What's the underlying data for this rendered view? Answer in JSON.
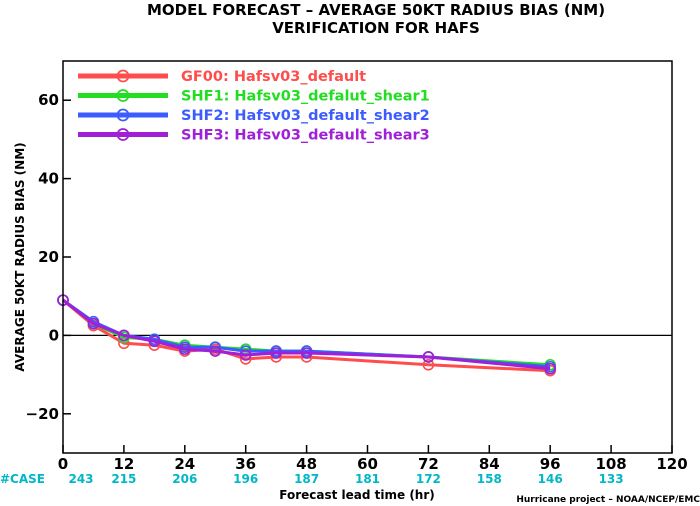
{
  "colors": {
    "axis": "#000000",
    "zero_line": "#000000",
    "case_label": "#00b7c7",
    "case_values": "#00b7c7"
  },
  "chart_data": {
    "type": "line",
    "title": "MODEL FORECAST – AVERAGE 50KT RADIUS BIAS (NM)",
    "subtitle": "VERIFICATION FOR HAFS",
    "xlabel": "Forecast lead time (hr)",
    "ylabel": "AVERAGE 50KT RADIUS BIAS (NM)",
    "credit": "Hurricane project – NOAA/NCEP/EMC",
    "xlim": [
      0,
      120
    ],
    "ylim": [
      -30,
      70
    ],
    "x_ticks": [
      0,
      12,
      24,
      36,
      48,
      60,
      72,
      84,
      96,
      108,
      120
    ],
    "y_ticks": [
      -20,
      0,
      20,
      40,
      60
    ],
    "grid": false,
    "zero_line": true,
    "legend_position": "top-left",
    "case_label": "#CASE",
    "case_counts": [
      {
        "x": 0,
        "n": "243"
      },
      {
        "x": 12,
        "n": "215"
      },
      {
        "x": 24,
        "n": "206"
      },
      {
        "x": 36,
        "n": "196"
      },
      {
        "x": 48,
        "n": "187"
      },
      {
        "x": 60,
        "n": "181"
      },
      {
        "x": 72,
        "n": "172"
      },
      {
        "x": 84,
        "n": "158"
      },
      {
        "x": 96,
        "n": "146"
      },
      {
        "x": 108,
        "n": "133"
      }
    ],
    "series": [
      {
        "name": "GF00: Hafsv03_default",
        "color": "#ff4d4d",
        "x": [
          0,
          6,
          12,
          18,
          24,
          30,
          36,
          42,
          48,
          72,
          96
        ],
        "y": [
          9,
          2.5,
          -2,
          -2.5,
          -4,
          -3.5,
          -6,
          -5.5,
          -5.5,
          -7.5,
          -9
        ]
      },
      {
        "name": "SHF1: Hafsv03_defalut_shear1",
        "color": "#22dd22",
        "x": [
          0,
          6,
          12,
          18,
          24,
          30,
          36,
          42,
          48,
          72,
          96
        ],
        "y": [
          9,
          3,
          -0.5,
          -1,
          -2.5,
          -3,
          -3.5,
          -4,
          -4,
          -5.5,
          -7.5
        ]
      },
      {
        "name": "SHF2: Hafsv03_default_shear2",
        "color": "#3d5cff",
        "x": [
          0,
          6,
          12,
          18,
          24,
          30,
          36,
          42,
          48,
          72,
          96
        ],
        "y": [
          9,
          3.5,
          0,
          -1,
          -3,
          -3,
          -4,
          -4,
          -4,
          -5.5,
          -8
        ]
      },
      {
        "name": "SHF3: Hafsv03_default_shear3",
        "color": "#a020d8",
        "x": [
          0,
          6,
          12,
          18,
          24,
          30,
          36,
          42,
          48,
          72,
          96
        ],
        "y": [
          9,
          3,
          0,
          -1.5,
          -3.5,
          -4,
          -5,
          -4.5,
          -4.5,
          -5.5,
          -8.5
        ]
      }
    ]
  }
}
